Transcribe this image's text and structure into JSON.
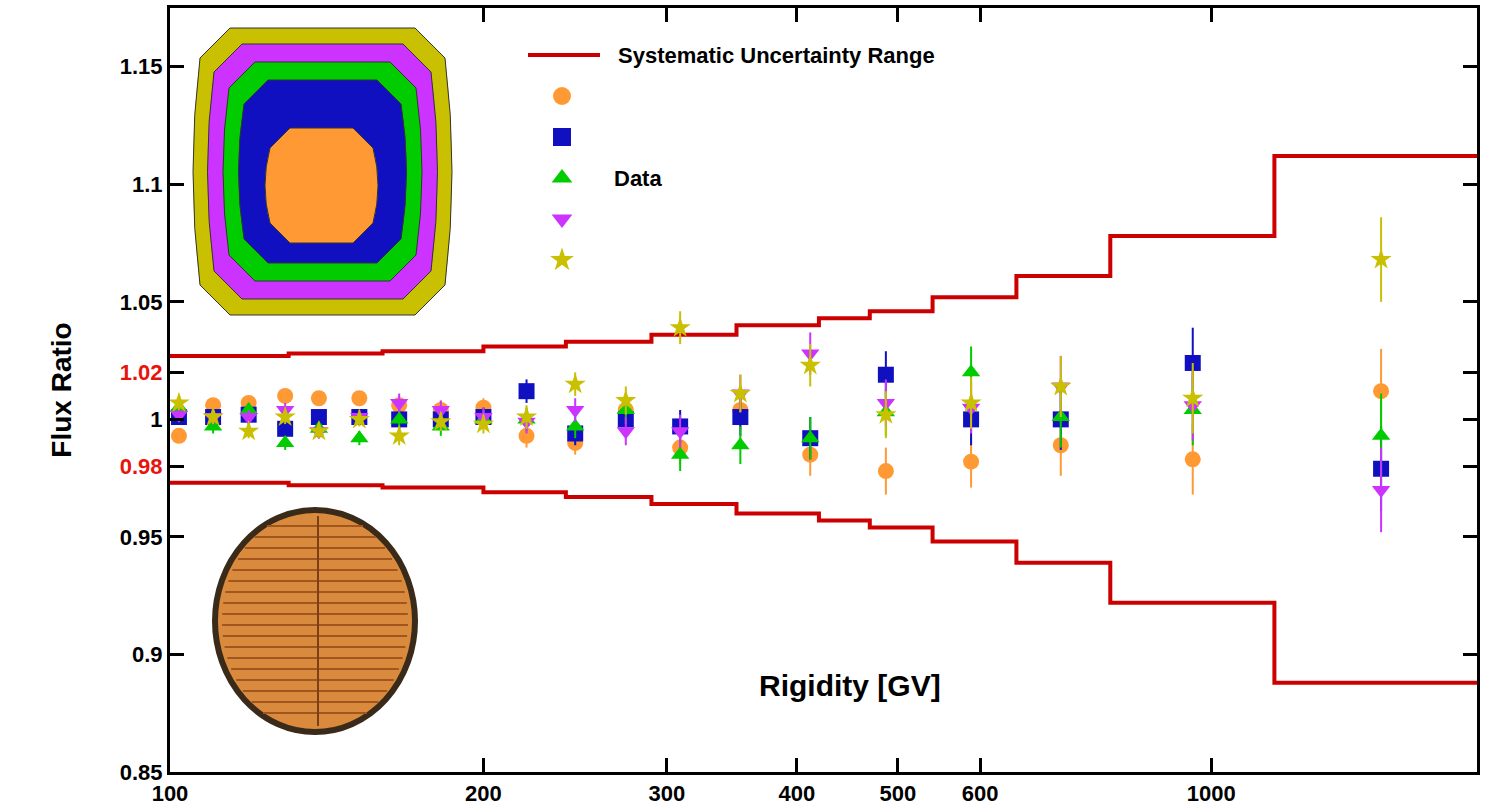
{
  "chart_data": {
    "type": "scatter",
    "xlabel": "Rigidity [GV]",
    "ylabel": "Flux Ratio",
    "log": "x",
    "grid": false,
    "legend": "upper center",
    "xlim": [
      100,
      1800
    ],
    "xticks": [
      100,
      200,
      300,
      400,
      500,
      600,
      1000
    ],
    "ylim": [
      0.85,
      1.175
    ],
    "yticks": [
      0.85,
      0.9,
      0.95,
      {
        "value": 0.98,
        "label": "0.98",
        "color": "#e8140c"
      },
      1,
      {
        "value": 1.02,
        "label": "1.02",
        "color": "#e8140c"
      },
      1.05,
      1.1,
      1.15
    ],
    "x": [
      102,
      110,
      119,
      129,
      139,
      152,
      166,
      182,
      200,
      220,
      245,
      274,
      309,
      353,
      412,
      487,
      588,
      717,
      960,
      1456
    ],
    "series": [
      {
        "name": "Systematic Uncertainty Range",
        "type": "line",
        "line_style": "step",
        "color": "#cc0000",
        "x": [
          100,
          130,
          160,
          200,
          240,
          290,
          350,
          420,
          470,
          540,
          650,
          800,
          1150,
          1800
        ],
        "upper": [
          1.027,
          1.028,
          1.029,
          1.031,
          1.033,
          1.036,
          1.04,
          1.043,
          1.046,
          1.052,
          1.061,
          1.078,
          1.112,
          1.112
        ],
        "lower": [
          0.973,
          0.972,
          0.971,
          0.969,
          0.967,
          0.964,
          0.96,
          0.957,
          0.954,
          0.948,
          0.939,
          0.922,
          0.888,
          0.888
        ]
      },
      {
        "type": "scatter",
        "marker": "circle",
        "color": "#ff9933",
        "values": [
          0.993,
          1.006,
          1.007,
          1.01,
          1.009,
          1.009,
          1.006,
          1.004,
          1.005,
          0.993,
          0.99,
          1.004,
          0.988,
          1.004,
          0.985,
          0.978,
          0.982,
          0.989,
          0.983,
          1.012
        ],
        "errors": [
          0.003,
          0.003,
          0.003,
          0.003,
          0.003,
          0.003,
          0.004,
          0.004,
          0.004,
          0.005,
          0.005,
          0.006,
          0.007,
          0.008,
          0.009,
          0.01,
          0.011,
          0.013,
          0.015,
          0.018
        ]
      },
      {
        "type": "scatter",
        "marker": "square",
        "color": "#1010c0",
        "values": [
          1.001,
          1.001,
          1.002,
          0.996,
          1.001,
          1.001,
          1.0,
          1.0,
          1.001,
          1.012,
          0.994,
          1.0,
          0.997,
          1.001,
          0.992,
          1.019,
          1.0,
          1.0,
          1.024,
          0.979
        ],
        "errors": [
          0.003,
          0.003,
          0.003,
          0.003,
          0.003,
          0.003,
          0.004,
          0.004,
          0.004,
          0.005,
          0.005,
          0.006,
          0.007,
          0.008,
          0.009,
          0.01,
          0.011,
          0.013,
          0.015,
          0.018
        ]
      },
      {
        "name": "Data",
        "type": "scatter",
        "marker": "triangle-up",
        "color": "#00cc00",
        "values": [
          1.005,
          0.997,
          1.004,
          0.99,
          0.996,
          0.992,
          1.0,
          0.997,
          1.0,
          1.0,
          0.997,
          1.004,
          0.985,
          0.989,
          0.992,
          1.003,
          1.02,
          1.001,
          1.004,
          0.993
        ],
        "errors": [
          0.003,
          0.003,
          0.003,
          0.003,
          0.003,
          0.003,
          0.004,
          0.004,
          0.004,
          0.005,
          0.005,
          0.006,
          0.007,
          0.008,
          0.009,
          0.01,
          0.011,
          0.013,
          0.015,
          0.018
        ]
      },
      {
        "type": "scatter",
        "marker": "triangle-down",
        "color": "#cc33ff",
        "values": [
          1.002,
          1.001,
          1.001,
          1.004,
          0.995,
          1.001,
          1.007,
          1.004,
          1.001,
          0.999,
          1.004,
          0.995,
          0.995,
          1.011,
          1.028,
          1.007,
          1.005,
          1.014,
          1.006,
          0.97
        ],
        "errors": [
          0.003,
          0.003,
          0.003,
          0.003,
          0.003,
          0.003,
          0.004,
          0.004,
          0.004,
          0.005,
          0.005,
          0.006,
          0.007,
          0.008,
          0.009,
          0.01,
          0.011,
          0.013,
          0.015,
          0.018
        ]
      },
      {
        "type": "scatter",
        "marker": "star",
        "color": "#c8c000",
        "values": [
          1.007,
          1.001,
          0.995,
          1.001,
          0.995,
          1.0,
          0.993,
          0.999,
          0.998,
          1.001,
          1.015,
          1.008,
          1.039,
          1.011,
          1.023,
          1.002,
          1.007,
          1.014,
          1.009,
          1.068
        ],
        "errors": [
          0.003,
          0.003,
          0.003,
          0.003,
          0.003,
          0.003,
          0.004,
          0.004,
          0.004,
          0.005,
          0.005,
          0.006,
          0.007,
          0.008,
          0.009,
          0.01,
          0.011,
          0.013,
          0.015,
          0.018
        ]
      }
    ]
  }
}
